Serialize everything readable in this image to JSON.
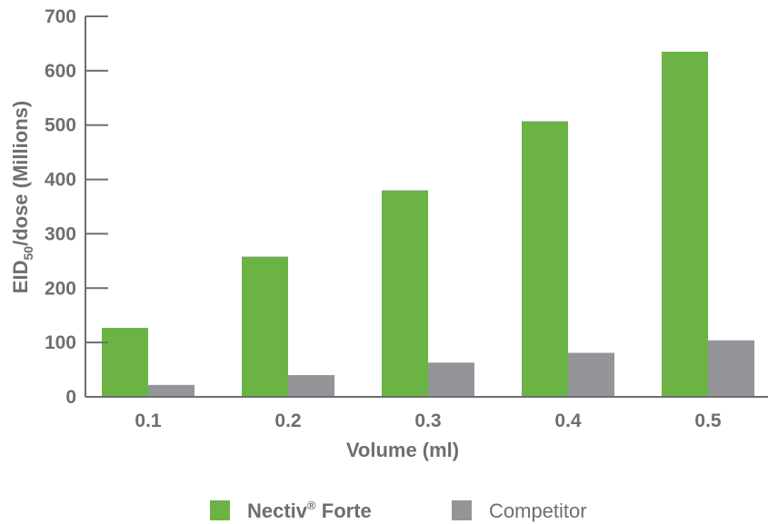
{
  "chart_data": {
    "type": "bar",
    "categories": [
      "0.1",
      "0.2",
      "0.3",
      "0.4",
      "0.5"
    ],
    "series": [
      {
        "name": "Nectiv® Forte",
        "legend_name": "Nectiv",
        "legend_sup": "®",
        "legend_suffix": " Forte",
        "color": "#6ab344",
        "values": [
          127,
          258,
          380,
          507,
          635
        ]
      },
      {
        "name": "Competitor",
        "color": "#939598",
        "values": [
          22,
          40,
          63,
          81,
          104
        ]
      }
    ],
    "title": "",
    "xlabel": "Volume (ml)",
    "ylabel_main": "EID",
    "ylabel_sub": "50",
    "ylabel_rest": "/dose  (Millions)",
    "ylim": [
      0,
      700
    ],
    "yticks": [
      "0",
      "100",
      "200",
      "300",
      "400",
      "500",
      "600",
      "700"
    ],
    "ytick_values": [
      0,
      100,
      200,
      300,
      400,
      500,
      600,
      700
    ],
    "grid": false,
    "legend_position": "bottom-center",
    "axis_color": "#6d6e71"
  }
}
